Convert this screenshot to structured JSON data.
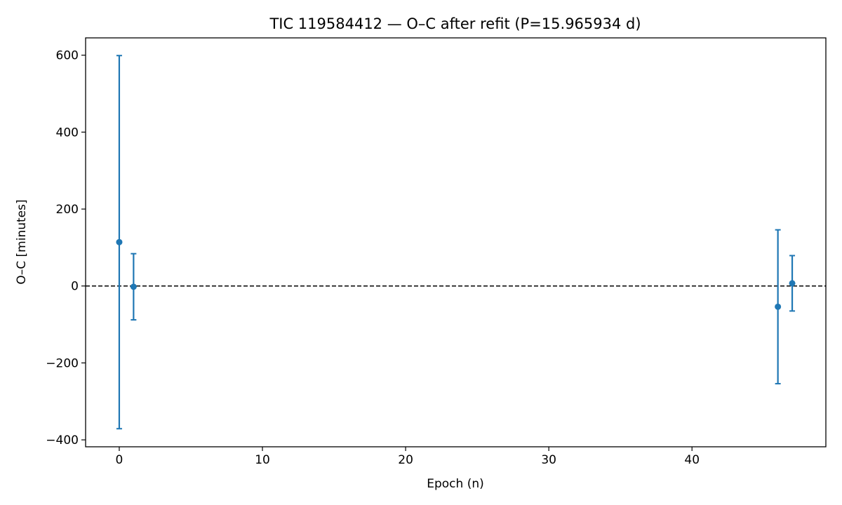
{
  "chart_data": {
    "type": "scatter",
    "title": "TIC 119584412 — O–C after refit (P=15.965934 d)",
    "xlabel": "Epoch (n)",
    "ylabel": "O–C [minutes]",
    "xlim": [
      -2.35,
      49.35
    ],
    "ylim": [
      -418,
      645
    ],
    "xticks": [
      0,
      10,
      20,
      30,
      40
    ],
    "yticks": [
      600,
      400,
      200,
      0,
      -200,
      -400
    ],
    "xtick_labels": [
      "0",
      "10",
      "20",
      "30",
      "40"
    ],
    "ytick_labels": [
      "600",
      "400",
      "200",
      "0",
      "−200",
      "−400"
    ],
    "grid": false,
    "reference_line": {
      "y": 0,
      "style": "dashed",
      "color": "#000000"
    },
    "series": [
      {
        "color": "#1f77b4",
        "points": [
          {
            "x": 0,
            "y": 114,
            "yerr": 485
          },
          {
            "x": 1,
            "y": -2,
            "yerr": 86
          },
          {
            "x": 46,
            "y": -54,
            "yerr": 200
          },
          {
            "x": 47,
            "y": 7,
            "yerr": 72
          }
        ]
      }
    ]
  }
}
